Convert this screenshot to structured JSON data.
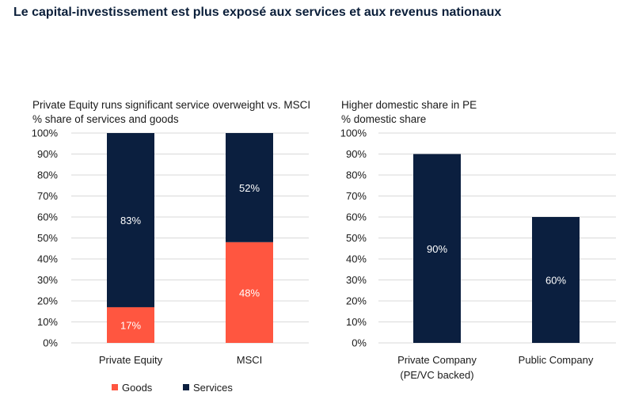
{
  "title": "Le capital-investissement est plus exposé aux services et aux revenus nationaux",
  "colors": {
    "goods": "#ff5640",
    "services": "#0b1f3f",
    "grid": "#d9d9d9"
  },
  "chart_data": [
    {
      "type": "bar",
      "stacked": true,
      "title": "Private Equity runs significant service overweight vs. MSCI",
      "subtitle": "% share of services and goods",
      "categories": [
        "Private Equity",
        "MSCI"
      ],
      "series": [
        {
          "name": "Goods",
          "values": [
            17,
            48
          ],
          "labels": [
            "17%",
            "48%"
          ]
        },
        {
          "name": "Services",
          "values": [
            83,
            52
          ],
          "labels": [
            "83%",
            "52%"
          ]
        }
      ],
      "ylim": [
        0,
        100
      ],
      "yticks": [
        "0%",
        "10%",
        "20%",
        "30%",
        "40%",
        "50%",
        "60%",
        "70%",
        "80%",
        "90%",
        "100%"
      ],
      "grid": true,
      "legend": "bottom"
    },
    {
      "type": "bar",
      "title": "Higher domestic share in PE",
      "subtitle": "% domestic share",
      "categories": [
        [
          "Private Company",
          "(PE/VC backed)"
        ],
        [
          "Public Company"
        ]
      ],
      "series": [
        {
          "name": "Domestic share",
          "values": [
            90,
            60
          ],
          "labels": [
            "90%",
            "60%"
          ]
        }
      ],
      "ylim": [
        0,
        100
      ],
      "yticks": [
        "0%",
        "10%",
        "20%",
        "30%",
        "40%",
        "50%",
        "60%",
        "70%",
        "80%",
        "90%",
        "100%"
      ],
      "grid": true
    }
  ]
}
